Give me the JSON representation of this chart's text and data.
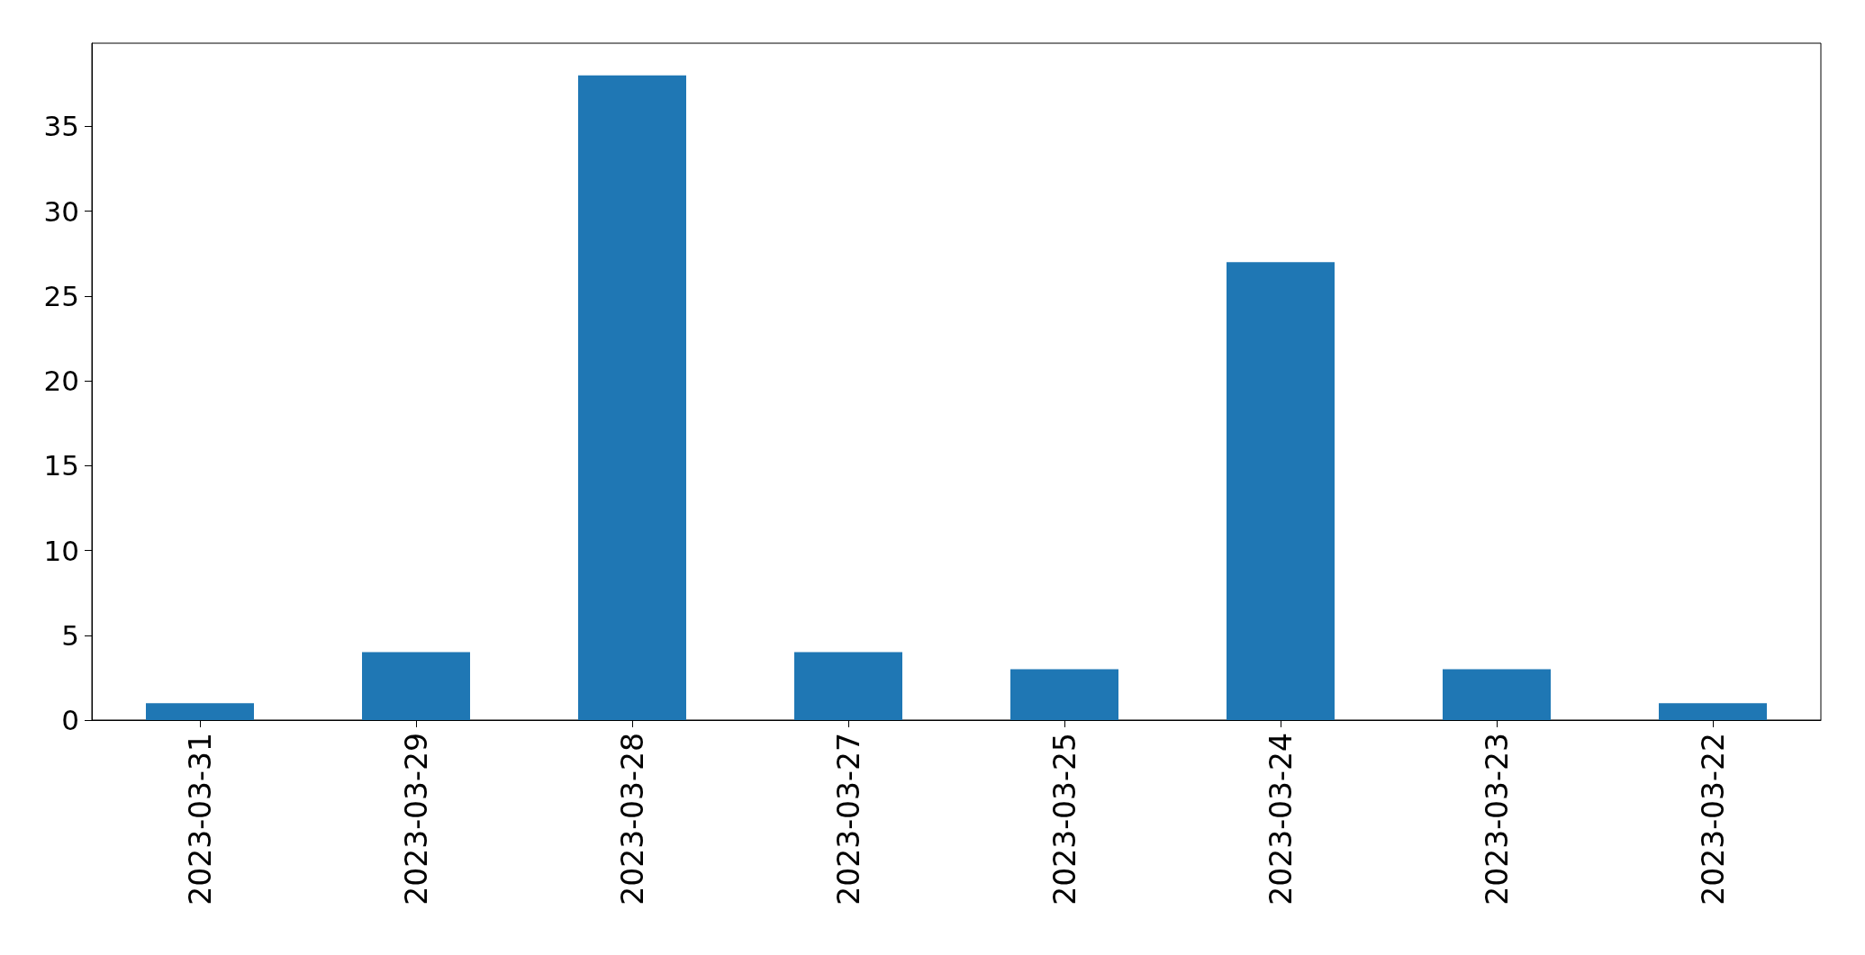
{
  "chart_data": {
    "type": "bar",
    "categories": [
      "2023-03-31",
      "2023-03-29",
      "2023-03-28",
      "2023-03-27",
      "2023-03-25",
      "2023-03-24",
      "2023-03-23",
      "2023-03-22"
    ],
    "values": [
      1,
      4,
      38,
      4,
      3,
      27,
      3,
      1
    ],
    "color": "#1f77b4",
    "ylim": [
      0,
      39.9
    ],
    "yticks": [
      0,
      5,
      10,
      15,
      20,
      25,
      30,
      35
    ],
    "grid": false
  }
}
